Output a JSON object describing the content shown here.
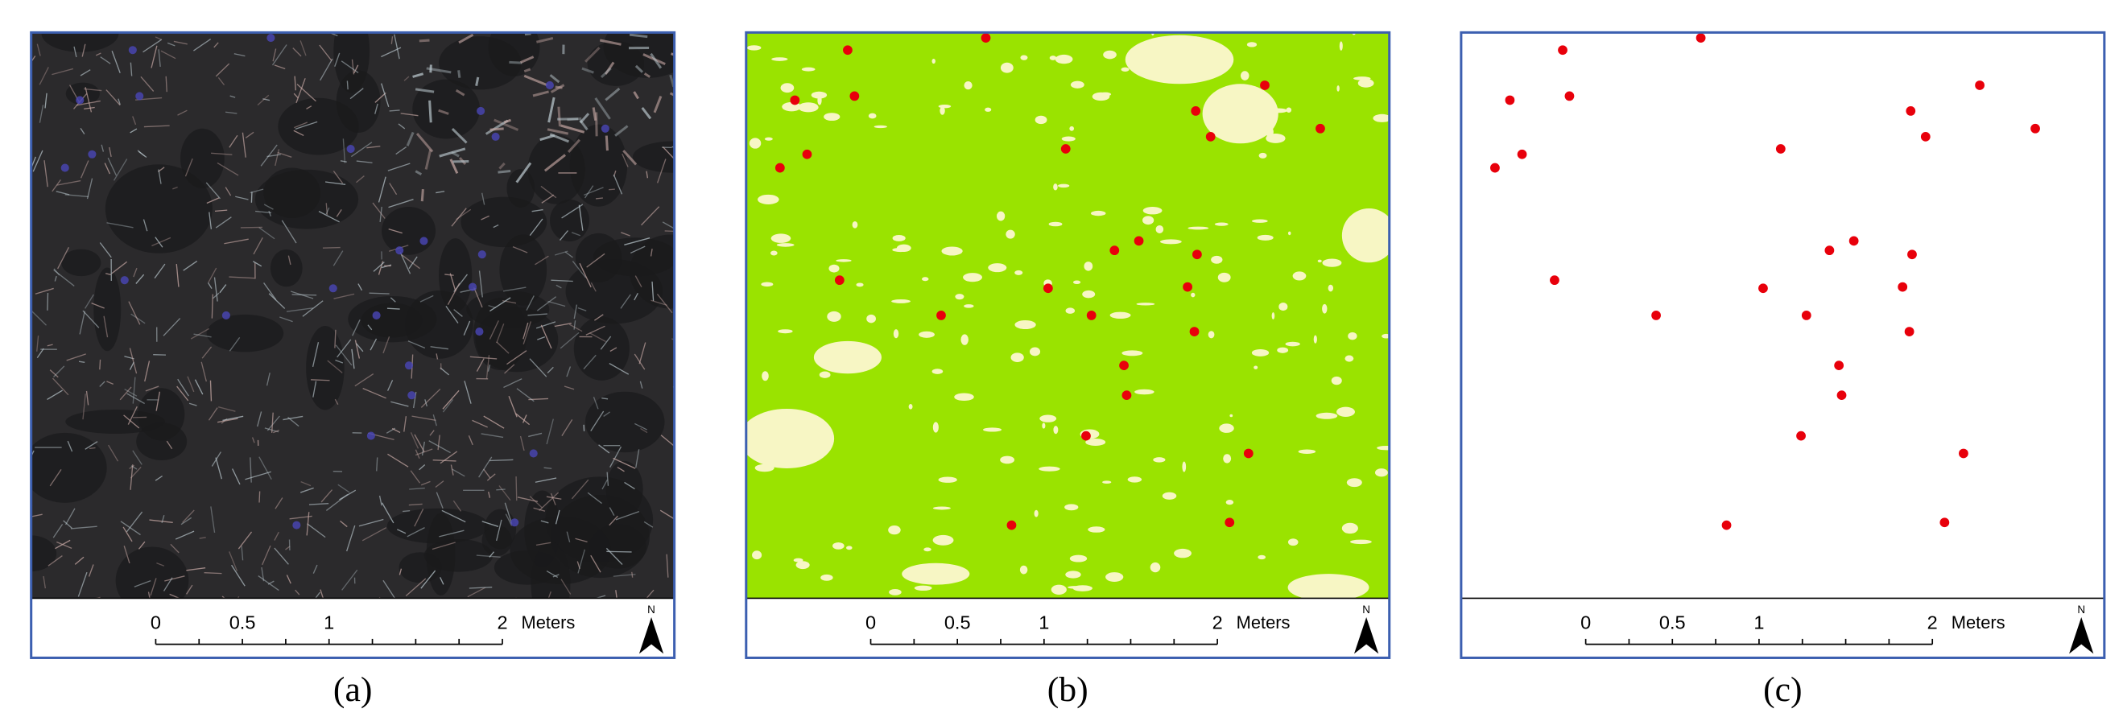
{
  "panels": [
    {
      "label": "(a)",
      "scale_bar": {
        "labels": [
          "0",
          "0.5",
          "1",
          "2"
        ],
        "unit": "Meters"
      },
      "north": "N"
    },
    {
      "label": "(b)",
      "scale_bar": {
        "labels": [
          "0",
          "0.5",
          "1",
          "2"
        ],
        "unit": "Meters"
      },
      "north": "N"
    },
    {
      "label": "(c)",
      "scale_bar": {
        "labels": [
          "0",
          "0.5",
          "1",
          "2"
        ],
        "unit": "Meters"
      },
      "north": "N"
    }
  ]
}
